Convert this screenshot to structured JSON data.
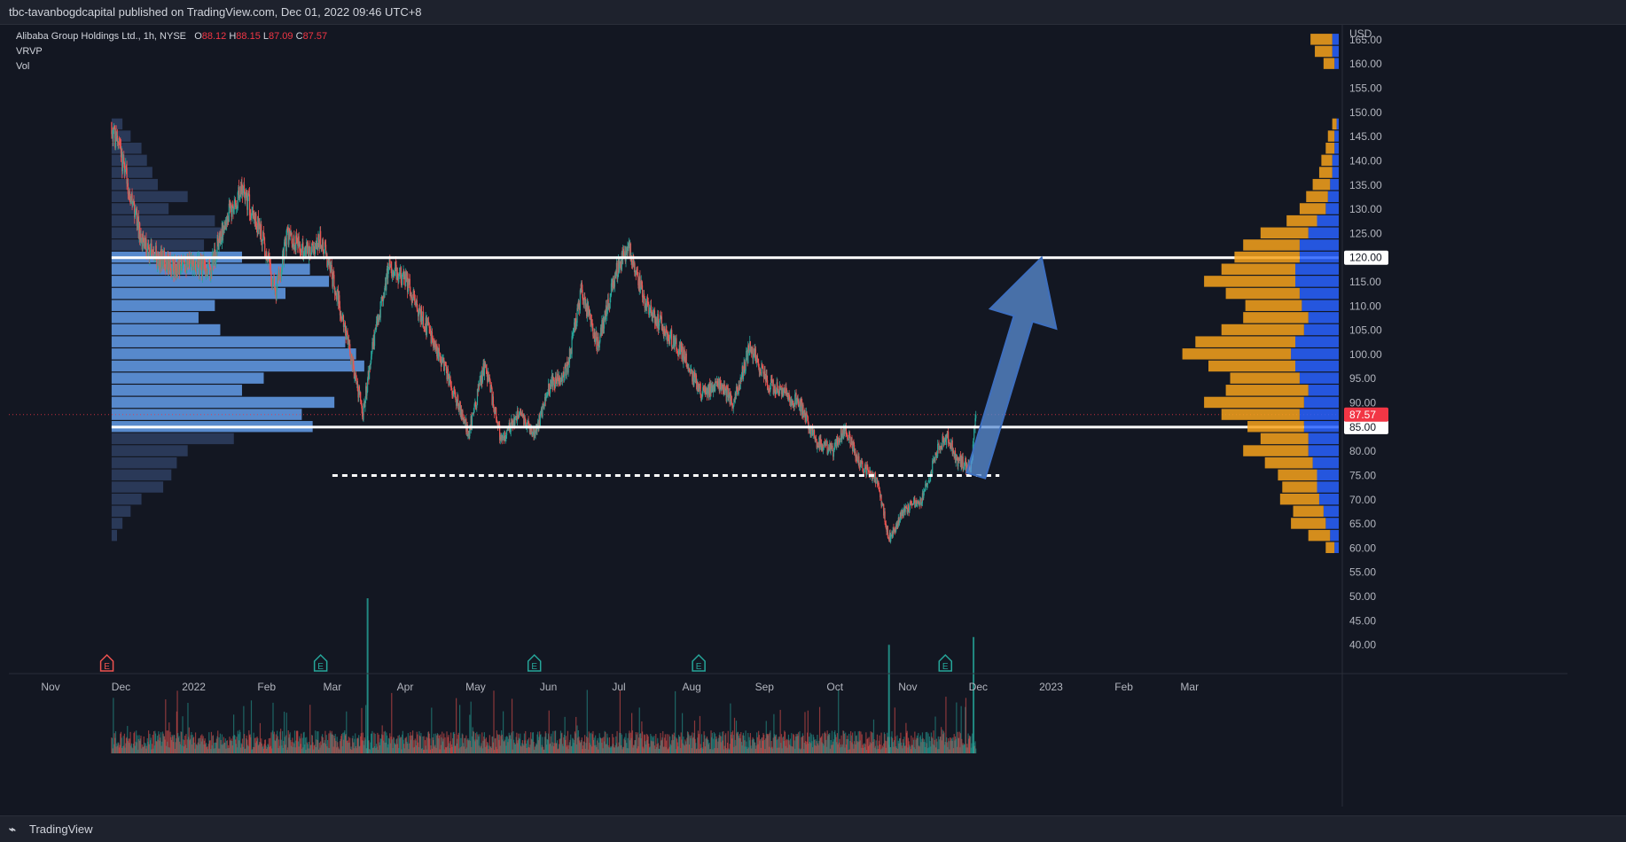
{
  "header": {
    "published_line": "tbc-tavanbogdcapital published on TradingView.com, Dec 01, 2022 09:46 UTC+8"
  },
  "legend": {
    "symbol": "Alibaba Group Holdings Ltd., 1h, NYSE",
    "o_label": "O",
    "o_value": "88.12",
    "h_label": "H",
    "h_value": "88.15",
    "l_label": "L",
    "l_value": "87.09",
    "c_label": "C",
    "c_value": "87.57",
    "indicators": [
      "VRVP",
      "Vol"
    ]
  },
  "footer": {
    "brand": "TradingView",
    "logo_icon": "tradingview-logo-icon"
  },
  "colors": {
    "up": "#26a69a",
    "down": "#ef5350",
    "profile_up": "#2962ff",
    "profile_down": "#f7a21b",
    "current_price": "#f23645"
  },
  "chart_data": {
    "type": "candlestick",
    "currency": "USD",
    "y_axis": {
      "label": "USD",
      "ylim": [
        37,
        167
      ],
      "ticks": [
        40,
        45,
        50,
        55,
        60,
        65,
        70,
        75,
        80,
        85,
        90,
        95,
        100,
        105,
        110,
        115,
        120,
        125,
        130,
        135,
        140,
        145,
        150,
        155,
        160,
        165
      ],
      "tick_labels": [
        "40.00",
        "45.00",
        "50.00",
        "55.00",
        "60.00",
        "65.00",
        "70.00",
        "75.00",
        "80.00",
        "85.00",
        "90.00",
        "95.00",
        "100.00",
        "105.00",
        "110.00",
        "115.00",
        "120.00",
        "125.00",
        "130.00",
        "135.00",
        "140.00",
        "145.00",
        "150.00",
        "155.00",
        "160.00",
        "165.00"
      ]
    },
    "x_axis": {
      "labels": [
        "Nov",
        "Dec",
        "2022",
        "Feb",
        "Mar",
        "Apr",
        "May",
        "Jun",
        "Jul",
        "Aug",
        "Sep",
        "Oct",
        "Nov",
        "Dec",
        "2023",
        "Feb",
        "Mar"
      ],
      "dates": [
        "2021-11-01",
        "2021-12-01",
        "2022-01-01",
        "2022-02-01",
        "2022-03-01",
        "2022-04-01",
        "2022-05-01",
        "2022-06-01",
        "2022-07-01",
        "2022-08-01",
        "2022-09-01",
        "2022-10-01",
        "2022-11-01",
        "2022-12-01",
        "2023-01-01",
        "2023-02-01",
        "2023-03-01"
      ]
    },
    "price_path": [
      {
        "date": "2021-11-27",
        "price": 148
      },
      {
        "date": "2021-12-03",
        "price": 137
      },
      {
        "date": "2021-12-10",
        "price": 123
      },
      {
        "date": "2021-12-17",
        "price": 120
      },
      {
        "date": "2021-12-24",
        "price": 118
      },
      {
        "date": "2022-01-01",
        "price": 119
      },
      {
        "date": "2022-01-08",
        "price": 117
      },
      {
        "date": "2022-01-15",
        "price": 129
      },
      {
        "date": "2022-01-22",
        "price": 134
      },
      {
        "date": "2022-01-29",
        "price": 126
      },
      {
        "date": "2022-02-05",
        "price": 113
      },
      {
        "date": "2022-02-10",
        "price": 125
      },
      {
        "date": "2022-02-17",
        "price": 121
      },
      {
        "date": "2022-02-24",
        "price": 124
      },
      {
        "date": "2022-03-01",
        "price": 116
      },
      {
        "date": "2022-03-07",
        "price": 104
      },
      {
        "date": "2022-03-14",
        "price": 88
      },
      {
        "date": "2022-03-18",
        "price": 101
      },
      {
        "date": "2022-03-25",
        "price": 118
      },
      {
        "date": "2022-04-01",
        "price": 116
      },
      {
        "date": "2022-04-08",
        "price": 108
      },
      {
        "date": "2022-04-18",
        "price": 97
      },
      {
        "date": "2022-04-28",
        "price": 84
      },
      {
        "date": "2022-05-05",
        "price": 98
      },
      {
        "date": "2022-05-12",
        "price": 82
      },
      {
        "date": "2022-05-19",
        "price": 88
      },
      {
        "date": "2022-05-26",
        "price": 83
      },
      {
        "date": "2022-06-02",
        "price": 94
      },
      {
        "date": "2022-06-09",
        "price": 97
      },
      {
        "date": "2022-06-15",
        "price": 113
      },
      {
        "date": "2022-06-22",
        "price": 102
      },
      {
        "date": "2022-06-30",
        "price": 117
      },
      {
        "date": "2022-07-05",
        "price": 122
      },
      {
        "date": "2022-07-12",
        "price": 111
      },
      {
        "date": "2022-07-19",
        "price": 106
      },
      {
        "date": "2022-07-27",
        "price": 101
      },
      {
        "date": "2022-08-05",
        "price": 92
      },
      {
        "date": "2022-08-12",
        "price": 94
      },
      {
        "date": "2022-08-19",
        "price": 90
      },
      {
        "date": "2022-08-26",
        "price": 102
      },
      {
        "date": "2022-09-02",
        "price": 94
      },
      {
        "date": "2022-09-09",
        "price": 92
      },
      {
        "date": "2022-09-16",
        "price": 90
      },
      {
        "date": "2022-09-23",
        "price": 82
      },
      {
        "date": "2022-09-30",
        "price": 80
      },
      {
        "date": "2022-10-05",
        "price": 85
      },
      {
        "date": "2022-10-12",
        "price": 77
      },
      {
        "date": "2022-10-19",
        "price": 74
      },
      {
        "date": "2022-10-24",
        "price": 62
      },
      {
        "date": "2022-10-31",
        "price": 68
      },
      {
        "date": "2022-11-07",
        "price": 70
      },
      {
        "date": "2022-11-14",
        "price": 81
      },
      {
        "date": "2022-11-18",
        "price": 83
      },
      {
        "date": "2022-11-22",
        "price": 78
      },
      {
        "date": "2022-11-28",
        "price": 77
      },
      {
        "date": "2022-11-30",
        "price": 87.57
      }
    ],
    "visible_range_profile": {
      "start": "2021-11-27",
      "levels": [
        {
          "price": 147.5,
          "volume": 4
        },
        {
          "price": 145,
          "volume": 7
        },
        {
          "price": 142.5,
          "volume": 11
        },
        {
          "price": 140,
          "volume": 13
        },
        {
          "price": 137.5,
          "volume": 15
        },
        {
          "price": 135,
          "volume": 17
        },
        {
          "price": 132.5,
          "volume": 28
        },
        {
          "price": 130,
          "volume": 21
        },
        {
          "price": 127.5,
          "volume": 38
        },
        {
          "price": 125,
          "volume": 41
        },
        {
          "price": 122.5,
          "volume": 34
        },
        {
          "price": 120,
          "volume": 48
        },
        {
          "price": 117.5,
          "volume": 73
        },
        {
          "price": 115,
          "volume": 80
        },
        {
          "price": 112.5,
          "volume": 64
        },
        {
          "price": 110,
          "volume": 38
        },
        {
          "price": 107.5,
          "volume": 32
        },
        {
          "price": 105,
          "volume": 40
        },
        {
          "price": 102.5,
          "volume": 86
        },
        {
          "price": 100,
          "volume": 90
        },
        {
          "price": 97.5,
          "volume": 93
        },
        {
          "price": 95,
          "volume": 56
        },
        {
          "price": 92.5,
          "volume": 48
        },
        {
          "price": 90,
          "volume": 82
        },
        {
          "price": 87.5,
          "volume": 70
        },
        {
          "price": 85,
          "volume": 74
        },
        {
          "price": 82.5,
          "volume": 45
        },
        {
          "price": 80,
          "volume": 28
        },
        {
          "price": 77.5,
          "volume": 24
        },
        {
          "price": 75,
          "volume": 22
        },
        {
          "price": 72.5,
          "volume": 19
        },
        {
          "price": 70,
          "volume": 11
        },
        {
          "price": 67.5,
          "volume": 7
        },
        {
          "price": 65,
          "volume": 4
        },
        {
          "price": 62.5,
          "volume": 2
        }
      ]
    },
    "right_volume_profile": {
      "levels": [
        {
          "price": 165,
          "up": 3,
          "down": 10
        },
        {
          "price": 162.5,
          "up": 3,
          "down": 8
        },
        {
          "price": 160,
          "up": 2,
          "down": 5
        },
        {
          "price": 147.5,
          "up": 1,
          "down": 2
        },
        {
          "price": 145,
          "up": 2,
          "down": 3
        },
        {
          "price": 142.5,
          "up": 2,
          "down": 4
        },
        {
          "price": 140,
          "up": 3,
          "down": 5
        },
        {
          "price": 137.5,
          "up": 3,
          "down": 6
        },
        {
          "price": 135,
          "up": 4,
          "down": 8
        },
        {
          "price": 132.5,
          "up": 5,
          "down": 10
        },
        {
          "price": 130,
          "up": 6,
          "down": 12
        },
        {
          "price": 127.5,
          "up": 10,
          "down": 14
        },
        {
          "price": 125,
          "up": 14,
          "down": 22
        },
        {
          "price": 122.5,
          "up": 18,
          "down": 26
        },
        {
          "price": 120,
          "up": 18,
          "down": 30
        },
        {
          "price": 117.5,
          "up": 20,
          "down": 34
        },
        {
          "price": 115,
          "up": 20,
          "down": 42
        },
        {
          "price": 112.5,
          "up": 18,
          "down": 34
        },
        {
          "price": 110,
          "up": 17,
          "down": 26
        },
        {
          "price": 107.5,
          "up": 14,
          "down": 30
        },
        {
          "price": 105,
          "up": 16,
          "down": 38
        },
        {
          "price": 102.5,
          "up": 20,
          "down": 46
        },
        {
          "price": 100,
          "up": 22,
          "down": 50
        },
        {
          "price": 97.5,
          "up": 20,
          "down": 40
        },
        {
          "price": 95,
          "up": 18,
          "down": 32
        },
        {
          "price": 92.5,
          "up": 14,
          "down": 38
        },
        {
          "price": 90,
          "up": 16,
          "down": 46
        },
        {
          "price": 87.5,
          "up": 18,
          "down": 36
        },
        {
          "price": 85,
          "up": 16,
          "down": 26
        },
        {
          "price": 82.5,
          "up": 14,
          "down": 22
        },
        {
          "price": 80,
          "up": 14,
          "down": 30
        },
        {
          "price": 77.5,
          "up": 12,
          "down": 22
        },
        {
          "price": 75,
          "up": 10,
          "down": 18
        },
        {
          "price": 72.5,
          "up": 10,
          "down": 16
        },
        {
          "price": 70,
          "up": 9,
          "down": 18
        },
        {
          "price": 67.5,
          "up": 7,
          "down": 14
        },
        {
          "price": 65,
          "up": 6,
          "down": 16
        },
        {
          "price": 62.5,
          "up": 4,
          "down": 10
        },
        {
          "price": 60,
          "up": 2,
          "down": 4
        }
      ]
    },
    "horizontal_lines": [
      {
        "price": 120,
        "style": "solid",
        "label": "120.00",
        "from": "2021-11-27",
        "to": "2023-03-25"
      },
      {
        "price": 85,
        "style": "solid",
        "label": "85.00",
        "from": "2021-11-27",
        "to": "2023-03-25"
      },
      {
        "price": 75,
        "style": "dashed",
        "from": "2022-03-01",
        "to": "2022-12-10"
      }
    ],
    "current_price": {
      "value": 87.57,
      "label": "87.57"
    },
    "arrow": {
      "from": {
        "date": "2022-11-30",
        "price": 75
      },
      "to": {
        "date": "2022-12-28",
        "price": 120
      }
    },
    "earnings_markers": [
      {
        "date": "2021-11-25",
        "letter": "E",
        "color": "#ef5350"
      },
      {
        "date": "2022-02-24",
        "letter": "E",
        "color": "#26a69a"
      },
      {
        "date": "2022-05-26",
        "letter": "E",
        "color": "#26a69a"
      },
      {
        "date": "2022-08-04",
        "letter": "E",
        "color": "#26a69a"
      },
      {
        "date": "2022-11-17",
        "letter": "E",
        "color": "#26a69a"
      }
    ],
    "volume_spikes": [
      {
        "date": "2022-03-16",
        "volume": 100
      },
      {
        "date": "2022-10-24",
        "volume": 70
      },
      {
        "date": "2022-11-29",
        "volume": 75
      }
    ],
    "grid": false
  }
}
